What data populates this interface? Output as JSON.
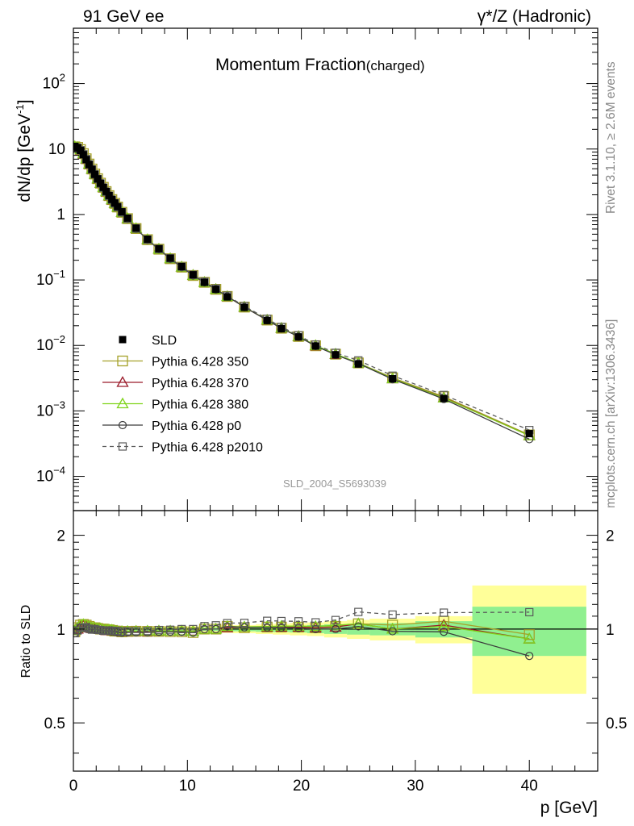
{
  "header": {
    "left": "91 GeV ee",
    "right": "γ*/Z (Hadronic)"
  },
  "side_labels": {
    "rivet": "Rivet 3.1.10, ≥ 2.6M events",
    "mcplots": "mcplots.cern.ch [arXiv:1306.3436]"
  },
  "chart_data": [
    {
      "type": "scatter",
      "title_main": "Momentum Fraction",
      "title_sub": "(charged)",
      "watermark": "SLD_2004_S5693039",
      "ylabel_main": "dN/dp [GeV",
      "ylabel_sup": "-1",
      "ylabel_close": "]",
      "xlim": [
        0,
        46
      ],
      "ylim": [
        3e-05,
        700
      ],
      "yscale": "log",
      "yticks": [
        {
          "v": 0.0001,
          "m": "10",
          "e": "−4"
        },
        {
          "v": 0.001,
          "m": "10",
          "e": "−3"
        },
        {
          "v": 0.01,
          "m": "10",
          "e": "−2"
        },
        {
          "v": 0.1,
          "m": "10",
          "e": "−1"
        },
        {
          "v": 1,
          "m": "1",
          "e": ""
        },
        {
          "v": 10,
          "m": "10",
          "e": ""
        },
        {
          "v": 100,
          "m": "10",
          "e": "2"
        }
      ],
      "legend_position": "left-middle",
      "x": [
        0.125,
        0.375,
        0.625,
        0.875,
        1.125,
        1.375,
        1.625,
        1.875,
        2.125,
        2.375,
        2.625,
        2.875,
        3.125,
        3.375,
        3.625,
        3.875,
        4.25,
        4.75,
        5.5,
        6.5,
        7.5,
        8.5,
        9.5,
        10.5,
        11.5,
        12.5,
        13.5,
        15.0,
        17.0,
        18.25,
        19.75,
        21.25,
        23.0,
        25.0,
        28.0,
        32.5,
        40.0
      ],
      "series": [
        {
          "name": "SLD",
          "color": "#000000",
          "marker": "filled-square",
          "line": "none",
          "values": [
            11.0,
            10.5,
            9.5,
            8.2,
            6.9,
            5.8,
            4.9,
            4.1,
            3.5,
            3.0,
            2.6,
            2.25,
            1.95,
            1.7,
            1.5,
            1.32,
            1.1,
            0.88,
            0.62,
            0.42,
            0.3,
            0.215,
            0.16,
            0.12,
            0.092,
            0.072,
            0.055,
            0.038,
            0.024,
            0.018,
            0.0135,
            0.0098,
            0.0072,
            0.0052,
            0.0031,
            0.00155,
            0.00045
          ]
        },
        {
          "name": "Pythia 6.428 350",
          "color": "#a5a12a",
          "marker": "open-square",
          "line": "solid",
          "values": [
            10.8,
            10.6,
            9.8,
            8.5,
            7.1,
            5.9,
            4.95,
            4.15,
            3.52,
            3.01,
            2.6,
            2.24,
            1.94,
            1.69,
            1.48,
            1.3,
            1.08,
            0.865,
            0.61,
            0.413,
            0.295,
            0.211,
            0.157,
            0.117,
            0.092,
            0.072,
            0.056,
            0.0385,
            0.0244,
            0.0183,
            0.0137,
            0.0099,
            0.00735,
            0.0054,
            0.0032,
            0.00165,
            0.00043
          ]
        },
        {
          "name": "Pythia 6.428 370",
          "color": "#9b1b2a",
          "marker": "open-triangle",
          "line": "solid",
          "values": [
            10.9,
            10.5,
            9.7,
            8.4,
            7.05,
            5.85,
            4.92,
            4.12,
            3.5,
            3.0,
            2.58,
            2.23,
            1.93,
            1.68,
            1.48,
            1.3,
            1.08,
            0.864,
            0.61,
            0.413,
            0.296,
            0.212,
            0.158,
            0.118,
            0.092,
            0.072,
            0.056,
            0.0385,
            0.0244,
            0.0183,
            0.0137,
            0.0099,
            0.0073,
            0.0054,
            0.0031,
            0.0016,
            0.00042
          ]
        },
        {
          "name": "Pythia 6.428 380",
          "color": "#7fd31a",
          "marker": "open-triangle",
          "line": "solid",
          "values": [
            10.9,
            10.6,
            9.8,
            8.5,
            7.1,
            5.9,
            4.95,
            4.14,
            3.51,
            3.01,
            2.59,
            2.24,
            1.94,
            1.69,
            1.48,
            1.3,
            1.08,
            0.866,
            0.611,
            0.414,
            0.296,
            0.212,
            0.158,
            0.118,
            0.092,
            0.072,
            0.056,
            0.0386,
            0.0245,
            0.0184,
            0.0138,
            0.01,
            0.0074,
            0.0054,
            0.0031,
            0.00158,
            0.00042
          ]
        },
        {
          "name": "Pythia 6.428 p0",
          "color": "#3c3c3c",
          "marker": "open-circle",
          "line": "solid",
          "values": [
            10.7,
            10.4,
            9.6,
            8.3,
            7.0,
            5.82,
            4.88,
            4.1,
            3.48,
            2.98,
            2.57,
            2.22,
            1.92,
            1.67,
            1.47,
            1.29,
            1.07,
            0.86,
            0.605,
            0.41,
            0.294,
            0.211,
            0.157,
            0.117,
            0.092,
            0.072,
            0.056,
            0.0385,
            0.0243,
            0.0182,
            0.0136,
            0.0098,
            0.0072,
            0.0053,
            0.00305,
            0.00152,
            0.00037
          ]
        },
        {
          "name": "Pythia 6.428 p2010",
          "color": "#5a5a5a",
          "marker": "open-square-small",
          "line": "dashed",
          "values": [
            10.7,
            10.4,
            9.6,
            8.3,
            7.0,
            5.82,
            4.88,
            4.1,
            3.48,
            2.98,
            2.57,
            2.22,
            1.93,
            1.68,
            1.48,
            1.3,
            1.08,
            0.866,
            0.611,
            0.414,
            0.298,
            0.214,
            0.16,
            0.12,
            0.094,
            0.074,
            0.0575,
            0.0398,
            0.0255,
            0.0191,
            0.0143,
            0.0103,
            0.0077,
            0.0059,
            0.00345,
            0.00175,
            0.00051
          ]
        }
      ]
    },
    {
      "type": "line",
      "ylabel": "Ratio to SLD",
      "xlabel": "p [GeV]",
      "xlim": [
        0,
        46
      ],
      "ylim": [
        0.35,
        2.4
      ],
      "yscale": "log",
      "yticks": [
        {
          "v": 0.5,
          "label": "0.5"
        },
        {
          "v": 1,
          "label": "1"
        },
        {
          "v": 2,
          "label": "2"
        }
      ],
      "xticks": [
        {
          "v": 0,
          "label": "0"
        },
        {
          "v": 10,
          "label": "10"
        },
        {
          "v": 20,
          "label": "20"
        },
        {
          "v": 30,
          "label": "30"
        },
        {
          "v": 40,
          "label": "40"
        }
      ],
      "bands": {
        "edges": [
          0,
          0.25,
          0.5,
          0.75,
          1.0,
          1.25,
          1.5,
          1.75,
          2.0,
          2.25,
          2.5,
          2.75,
          3.0,
          3.25,
          3.5,
          3.75,
          4.0,
          4.5,
          5.0,
          6.0,
          7.0,
          8.0,
          9.0,
          10.0,
          11.0,
          12.0,
          13.0,
          14.0,
          16.0,
          17.5,
          19.0,
          20.5,
          22.0,
          24.0,
          26.0,
          30.0,
          35.0,
          45.0
        ],
        "stat_rel": [
          0.02,
          0.02,
          0.015,
          0.015,
          0.012,
          0.012,
          0.012,
          0.012,
          0.012,
          0.012,
          0.012,
          0.012,
          0.012,
          0.012,
          0.012,
          0.012,
          0.012,
          0.012,
          0.012,
          0.012,
          0.012,
          0.012,
          0.012,
          0.012,
          0.012,
          0.013,
          0.014,
          0.016,
          0.02,
          0.022,
          0.025,
          0.03,
          0.035,
          0.04,
          0.045,
          0.06,
          0.18
        ],
        "total_rel": [
          0.035,
          0.03,
          0.025,
          0.022,
          0.02,
          0.02,
          0.02,
          0.02,
          0.02,
          0.02,
          0.02,
          0.02,
          0.02,
          0.02,
          0.02,
          0.02,
          0.02,
          0.02,
          0.02,
          0.02,
          0.02,
          0.02,
          0.022,
          0.022,
          0.024,
          0.026,
          0.028,
          0.03,
          0.036,
          0.04,
          0.045,
          0.05,
          0.06,
          0.07,
          0.08,
          0.1,
          0.38
        ],
        "stat_color": "#90f090",
        "total_color": "#ffff99"
      },
      "series": [
        {
          "name": "Pythia 6.428 350",
          "color": "#a5a12a",
          "marker": "open-square",
          "line": "solid",
          "values": [
            0.98,
            1.01,
            1.03,
            1.035,
            1.03,
            1.02,
            1.01,
            1.01,
            1.005,
            1.0,
            1.0,
            0.995,
            0.995,
            0.99,
            0.985,
            0.985,
            0.98,
            0.983,
            0.984,
            0.983,
            0.983,
            0.981,
            0.98,
            0.975,
            1.0,
            1.0,
            1.02,
            1.01,
            1.015,
            1.015,
            1.015,
            1.01,
            1.02,
            1.04,
            1.03,
            1.06,
            0.96
          ]
        },
        {
          "name": "Pythia 6.428 370",
          "color": "#9b1b2a",
          "marker": "open-triangle",
          "line": "solid",
          "values": [
            0.99,
            1.0,
            1.02,
            1.025,
            1.02,
            1.01,
            1.005,
            1.0,
            1.0,
            1.0,
            0.995,
            0.99,
            0.99,
            0.99,
            0.985,
            0.985,
            0.98,
            0.982,
            0.984,
            0.983,
            0.985,
            0.985,
            0.985,
            0.985,
            1.0,
            1.0,
            1.01,
            1.015,
            1.015,
            1.015,
            1.015,
            1.01,
            1.015,
            1.04,
            1.0,
            1.03,
            0.93
          ]
        },
        {
          "name": "Pythia 6.428 380",
          "color": "#7fd31a",
          "marker": "open-triangle",
          "line": "solid",
          "values": [
            0.99,
            1.01,
            1.03,
            1.035,
            1.03,
            1.02,
            1.01,
            1.01,
            1.003,
            1.003,
            0.996,
            0.995,
            0.995,
            0.994,
            0.987,
            0.985,
            0.982,
            0.984,
            0.985,
            0.986,
            0.987,
            0.986,
            0.987,
            0.983,
            1.0,
            1.0,
            1.02,
            1.016,
            1.02,
            1.022,
            1.022,
            1.02,
            1.028,
            1.04,
            1.0,
            1.02,
            0.93
          ]
        },
        {
          "name": "Pythia 6.428 p0",
          "color": "#3c3c3c",
          "marker": "open-circle",
          "line": "solid",
          "values": [
            0.97,
            0.99,
            1.01,
            1.012,
            1.014,
            1.003,
            0.996,
            1.0,
            0.994,
            0.993,
            0.988,
            0.987,
            0.985,
            0.982,
            0.98,
            0.977,
            0.973,
            0.977,
            0.976,
            0.976,
            0.98,
            0.981,
            0.981,
            0.975,
            1.0,
            1.0,
            1.02,
            1.013,
            1.012,
            1.011,
            1.007,
            1.0,
            1.0,
            1.02,
            0.984,
            0.98,
            0.82
          ]
        },
        {
          "name": "Pythia 6.428 p2010",
          "color": "#5a5a5a",
          "marker": "open-square-small",
          "line": "dashed",
          "values": [
            0.97,
            0.99,
            1.01,
            1.012,
            1.014,
            1.003,
            0.996,
            1.0,
            0.994,
            0.993,
            0.988,
            0.987,
            0.99,
            0.988,
            0.987,
            0.985,
            0.982,
            0.984,
            0.985,
            0.986,
            0.993,
            0.995,
            1.0,
            1.0,
            1.022,
            1.028,
            1.045,
            1.047,
            1.063,
            1.061,
            1.059,
            1.051,
            1.069,
            1.135,
            1.113,
            1.129,
            1.133
          ]
        }
      ]
    }
  ]
}
